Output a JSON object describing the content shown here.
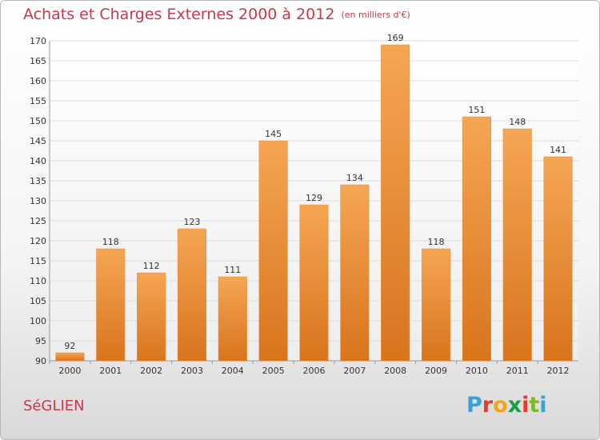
{
  "header": {
    "title": "Achats et Charges Externes 2000 à 2012",
    "unit": "(en milliers d'€)"
  },
  "footer": {
    "commune": "SéGLIEN",
    "logo_text": "Proxiti",
    "logo_colors": [
      "#3aa1d8",
      "#e8392a",
      "#f7a21b",
      "#1b9e4b",
      "#e8392a",
      "#7ab929",
      "#3aa1d8"
    ]
  },
  "colors": {
    "bar_light": "#f5a654",
    "bar_dark": "#d9741c",
    "title": "#c8384e"
  },
  "chart_data": {
    "type": "bar",
    "title": "Achats et Charges Externes 2000 à 2012",
    "subtitle": "(en milliers d'€)",
    "xlabel": "",
    "ylabel": "",
    "categories": [
      "2000",
      "2001",
      "2002",
      "2003",
      "2004",
      "2005",
      "2006",
      "2007",
      "2008",
      "2009",
      "2010",
      "2011",
      "2012"
    ],
    "values": [
      92,
      118,
      112,
      123,
      111,
      145,
      129,
      134,
      169,
      118,
      151,
      148,
      141
    ],
    "ylim": [
      90,
      170
    ],
    "yticks": [
      90,
      95,
      100,
      105,
      110,
      115,
      120,
      125,
      130,
      135,
      140,
      145,
      150,
      155,
      160,
      165,
      170
    ],
    "grid": true,
    "legend": "none"
  }
}
